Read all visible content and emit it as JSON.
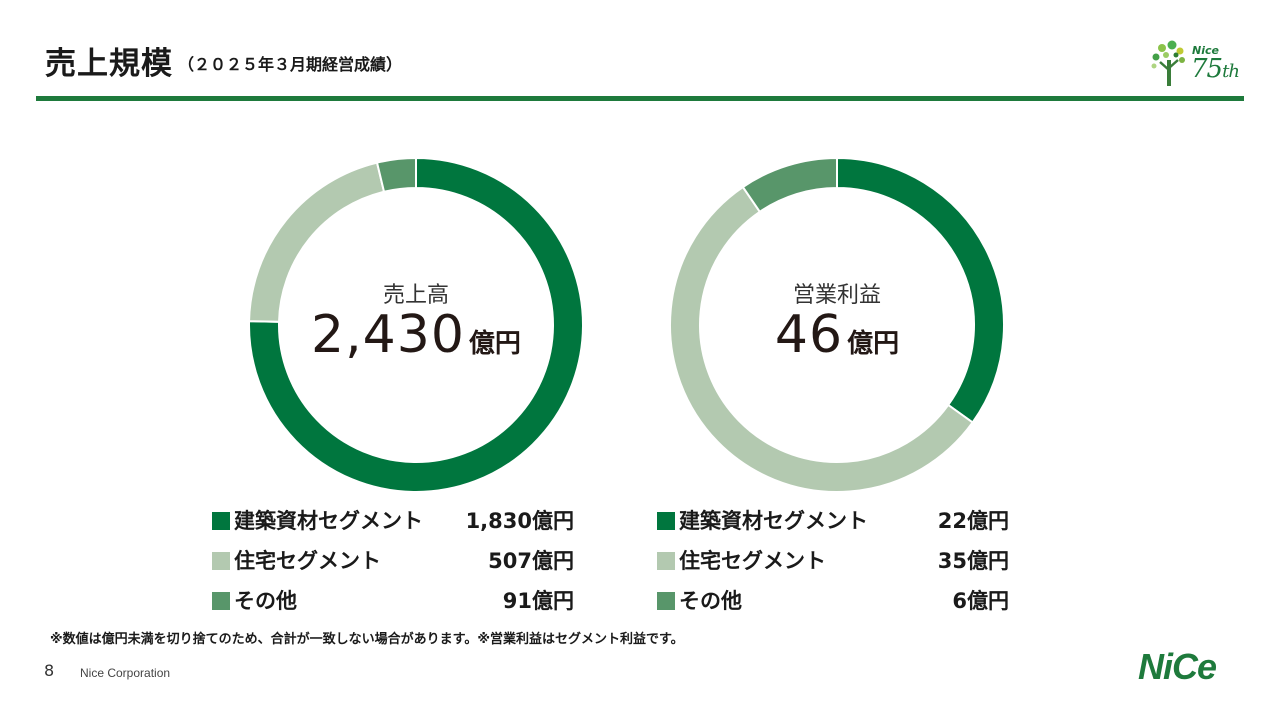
{
  "header": {
    "title": "売上規模",
    "subtitle": "（２０２５年３月期経営成績）"
  },
  "logo75": {
    "brand": "Nice",
    "num": "75",
    "suffix": "th"
  },
  "colors": {
    "dark_green": "#00763e",
    "light_green": "#b3c9b0",
    "mid_green": "#58966a",
    "rule_green": "#1e7a3c"
  },
  "chart_data": [
    {
      "type": "pie",
      "title": "売上高",
      "center_value": "2,430",
      "center_unit": "億円",
      "categories": [
        "建築資材セグメント",
        "住宅セグメント",
        "その他"
      ],
      "values": [
        1830,
        507,
        91
      ],
      "value_labels": [
        "1,830億円",
        "507億円",
        "91億円"
      ]
    },
    {
      "type": "pie",
      "title": "営業利益",
      "center_value": "46",
      "center_unit": "億円",
      "categories": [
        "建築資材セグメント",
        "住宅セグメント",
        "その他"
      ],
      "values": [
        22,
        35,
        6
      ],
      "value_labels": [
        "22億円",
        "35億円",
        "6億円"
      ]
    }
  ],
  "footnote": "※数値は億円未満を切り捨てのため、合計が一致しない場合があります。※営業利益はセグメント利益です。",
  "footer": {
    "page": "8",
    "company": "Nice Corporation",
    "logo": "NiCe"
  }
}
